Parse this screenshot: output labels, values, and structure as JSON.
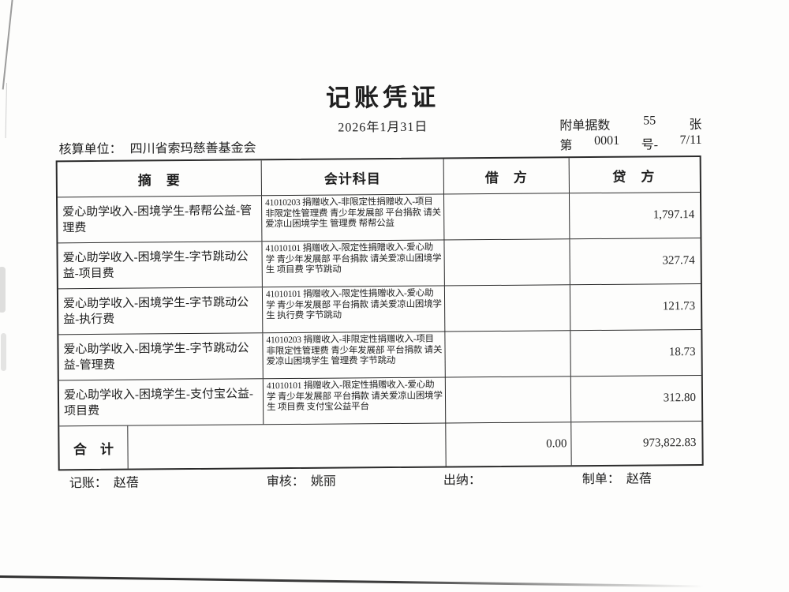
{
  "page": {
    "title": "记账凭证",
    "date": "2026年1月31日",
    "attachment": {
      "label": "附单据数",
      "count": "55",
      "unit": "张"
    },
    "number": {
      "prefix": "第",
      "value": "0001",
      "suffix": "号-",
      "page": "7/11"
    },
    "unit": {
      "label": "核算单位：",
      "name": "四川省索玛慈善基金会"
    }
  },
  "table": {
    "headers": {
      "summary": "摘　要",
      "account": "会计科目",
      "debit": "借　方",
      "credit": "贷　方"
    },
    "rows": [
      {
        "summary": "爱心助学收入-困境学生-帮帮公益-管理费",
        "account": "41010203 捐赠收入-非限定性捐赠收入-项目非限定性管理费 青少年发展部 平台捐款 请关爱凉山困境学生 管理费 帮帮公益",
        "debit": "",
        "credit": "1,797.14"
      },
      {
        "summary": "爱心助学收入-困境学生-字节跳动公益-项目费",
        "account": "41010101 捐赠收入-限定性捐赠收入-爱心助学 青少年发展部 平台捐款 请关爱凉山困境学生 项目费 字节跳动",
        "debit": "",
        "credit": "327.74"
      },
      {
        "summary": "爱心助学收入-困境学生-字节跳动公益-执行费",
        "account": "41010101 捐赠收入-限定性捐赠收入-爱心助学 青少年发展部 平台捐款 请关爱凉山困境学生 执行费 字节跳动",
        "debit": "",
        "credit": "121.73"
      },
      {
        "summary": "爱心助学收入-困境学生-字节跳动公益-管理费",
        "account": "41010203 捐赠收入-非限定性捐赠收入-项目非限定性管理费 青少年发展部 平台捐款 请关爱凉山困境学生 管理费 字节跳动",
        "debit": "",
        "credit": "18.73"
      },
      {
        "summary": "爱心助学收入-困境学生-支付宝公益-项目费",
        "account": "41010101 捐赠收入-限定性捐赠收入-爱心助学 青少年发展部 平台捐款 请关爱凉山困境学生 项目费 支付宝公益平台",
        "debit": "",
        "credit": "312.80"
      }
    ],
    "total": {
      "label": "合　计",
      "debit": "0.00",
      "credit": "973,822.83"
    }
  },
  "footer": {
    "bookkeeper": {
      "label": "记账：",
      "name": "赵蓓"
    },
    "auditor": {
      "label": "审核：",
      "name": "姚丽"
    },
    "cashier": {
      "label": "出纳：",
      "name": ""
    },
    "preparer": {
      "label": "制单：",
      "name": "赵蓓"
    }
  }
}
